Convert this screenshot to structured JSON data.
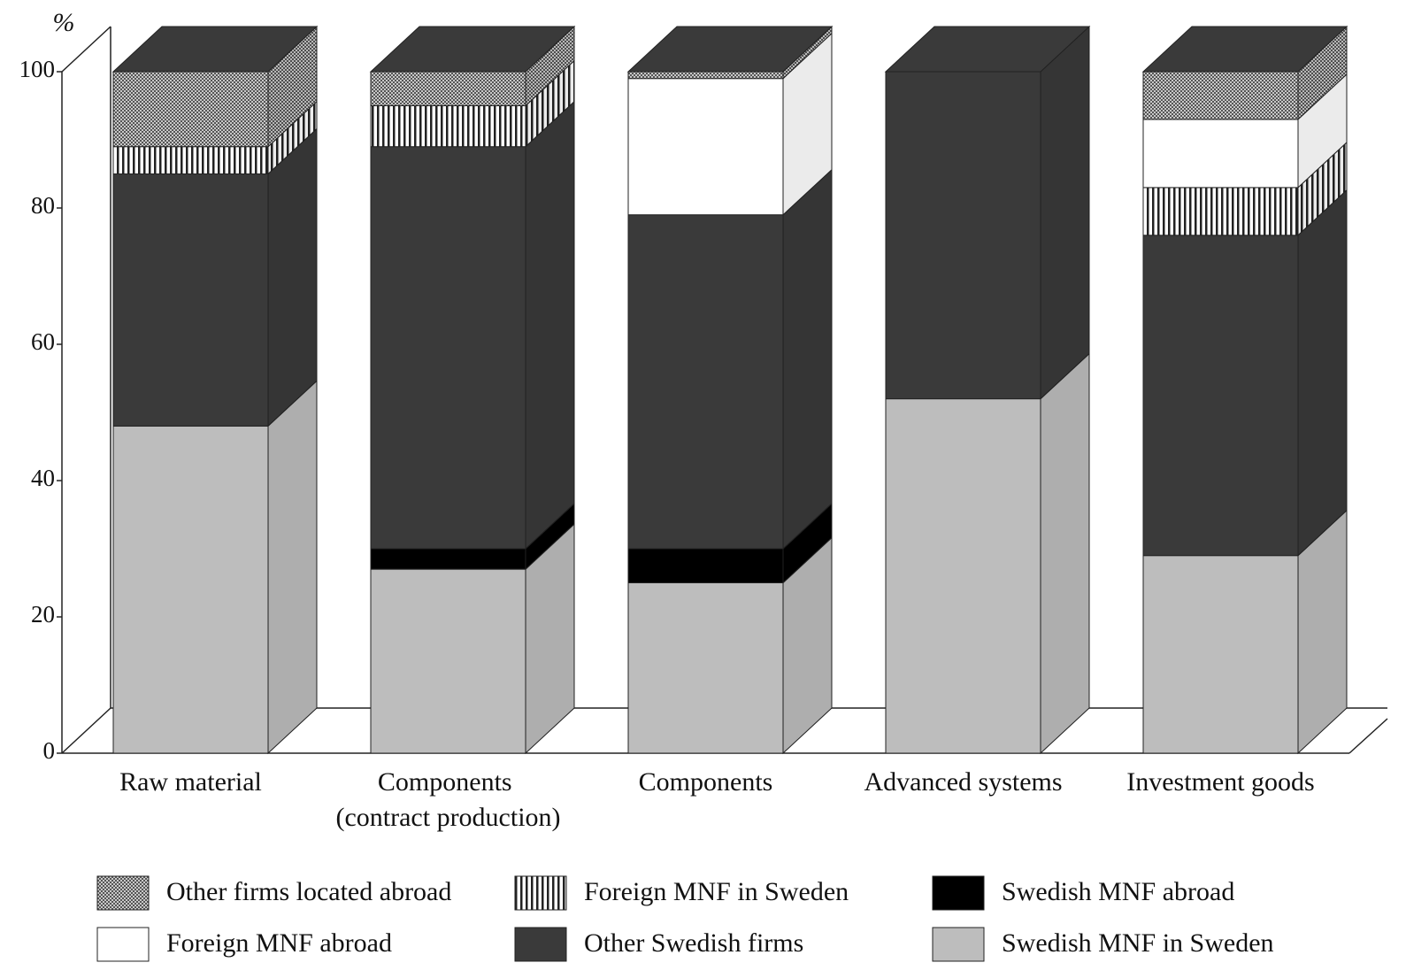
{
  "chart_data": {
    "type": "stacked-bar-3d",
    "y_label": "%",
    "categories": [
      "Raw material",
      "Components (contract production)",
      "Components",
      "Advanced systems",
      "Investment goods"
    ],
    "series": [
      {
        "name": "Swedish MNF in Sweden",
        "color": "#bdbdbd",
        "values": [
          48,
          27,
          25,
          52,
          29
        ]
      },
      {
        "name": "Swedish MNF abroad",
        "color": "#000000",
        "values": [
          0,
          3,
          5,
          0,
          0
        ]
      },
      {
        "name": "Other Swedish firms",
        "color": "#3a3a3a",
        "values": [
          37,
          59,
          49,
          48,
          47
        ]
      },
      {
        "name": "Foreign MNF in Sweden",
        "color": "#ffffff",
        "pattern": "stripes",
        "values": [
          4,
          6,
          0,
          0,
          7
        ]
      },
      {
        "name": "Foreign MNF abroad",
        "color": "#ffffff",
        "values": [
          0,
          0,
          20,
          0,
          10
        ]
      },
      {
        "name": "Other firms located abroad",
        "color": "#9a9a9a",
        "pattern": "checks",
        "values": [
          11,
          5,
          1,
          0,
          7
        ]
      }
    ],
    "ylim": [
      0,
      100
    ],
    "yticks": [
      0,
      20,
      40,
      60,
      80,
      100
    ]
  }
}
